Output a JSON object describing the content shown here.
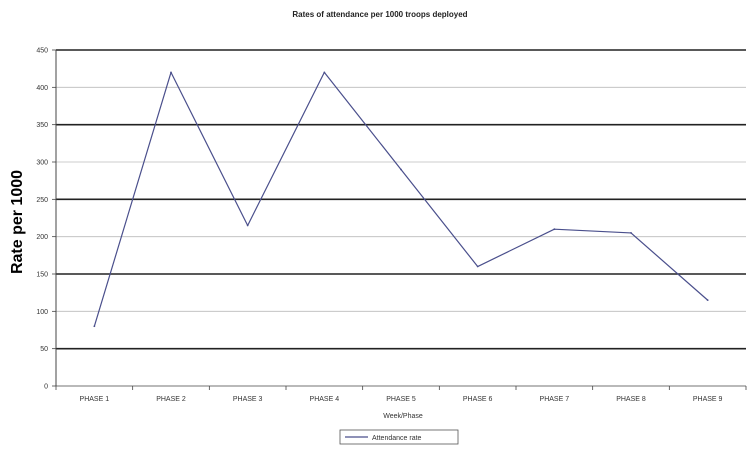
{
  "chart_data": {
    "type": "line",
    "title": "Rates of attendance per 1000 troops deployed",
    "ylabel": "Rate per 1000",
    "xlabel": "Week/Phase",
    "ylim": [
      0,
      450
    ],
    "yticks": [
      0,
      50,
      100,
      150,
      200,
      250,
      300,
      350,
      400,
      450
    ],
    "categories": [
      "PHASE 1",
      "PHASE 2",
      "PHASE 3",
      "PHASE 4",
      "PHASE 5",
      "PHASE 6",
      "PHASE 7",
      "PHASE 8",
      "PHASE 9"
    ],
    "series": [
      {
        "name": "Attendance rate",
        "values": [
          80,
          420,
          215,
          420,
          290,
          160,
          210,
          205,
          115
        ],
        "color": "#4a4f8c"
      }
    ],
    "grid": true,
    "legend": "bottom-center"
  }
}
